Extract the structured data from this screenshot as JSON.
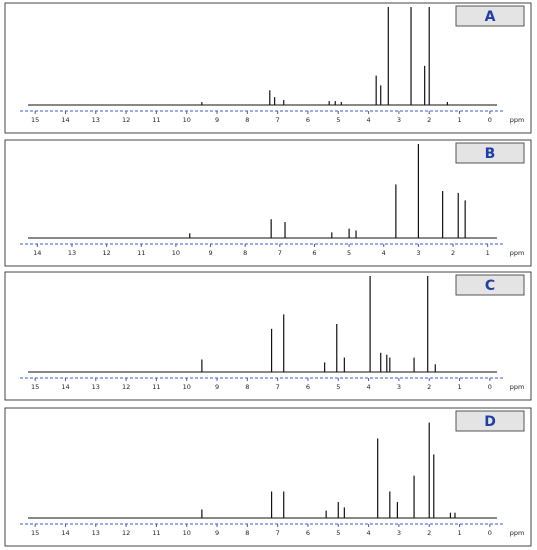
{
  "chart_data": [
    {
      "type": "spectrum",
      "title": "A",
      "xlabel": "ppm",
      "xlim": [
        15.5,
        -0.5
      ],
      "ylim": [
        0,
        100
      ],
      "xticks": [
        15,
        14,
        13,
        12,
        11,
        10,
        9,
        8,
        7,
        6,
        5,
        4,
        3,
        2,
        1,
        0
      ],
      "x": [
        9.5,
        7.26,
        7.1,
        6.8,
        5.3,
        5.1,
        4.9,
        3.75,
        3.6,
        3.35,
        2.6,
        2.15,
        2.0,
        1.4
      ],
      "values": [
        3,
        15,
        8,
        5,
        4,
        4,
        3,
        30,
        20,
        100,
        100,
        40,
        100,
        3
      ]
    },
    {
      "type": "spectrum",
      "title": "B",
      "xlabel": "ppm",
      "xlim": [
        14.5,
        0.5
      ],
      "ylim": [
        0,
        100
      ],
      "xticks": [
        14,
        13,
        12,
        11,
        10,
        9,
        8,
        7,
        6,
        5,
        4,
        3,
        2,
        1
      ],
      "x": [
        9.6,
        7.25,
        6.85,
        5.5,
        5.0,
        4.8,
        3.65,
        3.0,
        2.3,
        1.85,
        1.65
      ],
      "values": [
        5,
        20,
        17,
        6,
        10,
        8,
        57,
        100,
        50,
        48,
        40
      ]
    },
    {
      "type": "spectrum",
      "title": "C",
      "xlabel": "ppm",
      "xlim": [
        15.5,
        -0.5
      ],
      "ylim": [
        0,
        100
      ],
      "xticks": [
        15,
        14,
        13,
        12,
        11,
        10,
        9,
        8,
        7,
        6,
        5,
        4,
        3,
        2,
        1,
        0
      ],
      "x": [
        9.5,
        7.2,
        6.8,
        5.45,
        5.05,
        4.8,
        3.95,
        3.6,
        3.4,
        3.3,
        2.5,
        2.05,
        1.8
      ],
      "values": [
        13,
        45,
        60,
        10,
        50,
        15,
        100,
        20,
        18,
        15,
        15,
        100,
        8
      ]
    },
    {
      "type": "spectrum",
      "title": "D",
      "xlabel": "ppm",
      "xlim": [
        15.5,
        -0.5
      ],
      "ylim": [
        0,
        100
      ],
      "xticks": [
        15,
        14,
        13,
        12,
        11,
        10,
        9,
        8,
        7,
        6,
        5,
        4,
        3,
        2,
        1,
        0
      ],
      "x": [
        9.5,
        7.2,
        6.8,
        5.4,
        5.0,
        4.8,
        3.7,
        3.3,
        3.05,
        2.5,
        2.0,
        1.85,
        1.3,
        1.15
      ],
      "values": [
        8,
        25,
        25,
        7,
        15,
        10,
        75,
        25,
        15,
        40,
        90,
        60,
        5,
        5
      ]
    }
  ]
}
